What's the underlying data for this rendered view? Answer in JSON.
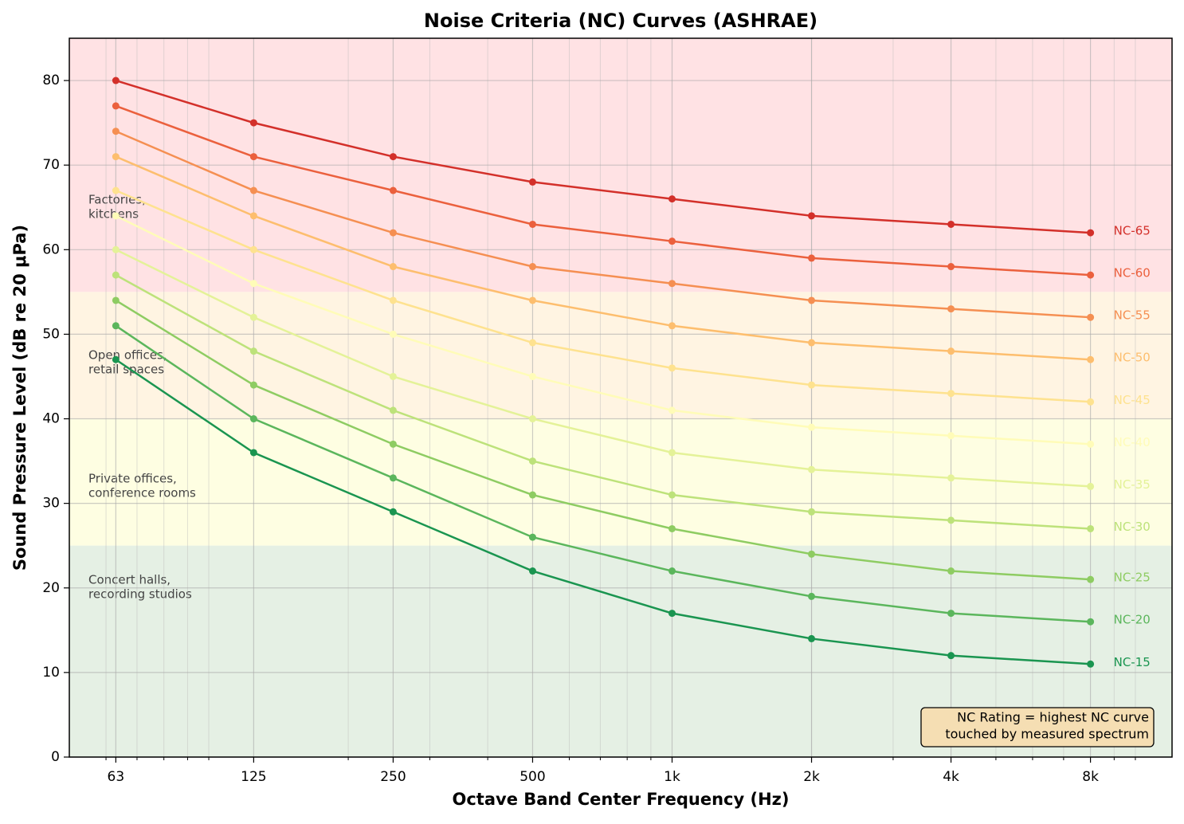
{
  "chart_data": {
    "type": "line",
    "title": "Noise Criteria (NC) Curves (ASHRAE)",
    "xlabel": "Octave Band Center Frequency (Hz)",
    "ylabel": "Sound Pressure Level (dB re 20 μPa)",
    "x": [
      63,
      125,
      250,
      500,
      1000,
      2000,
      4000,
      8000
    ],
    "xscale": "log",
    "xlim": [
      50,
      12000
    ],
    "xticks": [
      63,
      125,
      250,
      500,
      {
        "value": 1000,
        "label": "1k"
      },
      {
        "value": 2000,
        "label": "2k"
      },
      {
        "value": 4000,
        "label": "4k"
      },
      {
        "value": 8000,
        "label": "8k"
      }
    ],
    "xminorticks": [
      60,
      70,
      80,
      90,
      100,
      200,
      300,
      400,
      600,
      700,
      800,
      900,
      2000,
      3000,
      5000,
      6000,
      7000,
      9000,
      10000
    ],
    "ylim": [
      0,
      85
    ],
    "yticks": [
      0,
      10,
      20,
      30,
      40,
      50,
      60,
      70,
      80
    ],
    "grid": true,
    "series": [
      {
        "name": "NC-65",
        "color": "#d3302a",
        "values": [
          80,
          75,
          71,
          68,
          66,
          64,
          63,
          62
        ]
      },
      {
        "name": "NC-60",
        "color": "#eb603d",
        "values": [
          77,
          71,
          67,
          63,
          61,
          59,
          58,
          57
        ]
      },
      {
        "name": "NC-55",
        "color": "#f58f52",
        "values": [
          74,
          67,
          62,
          58,
          56,
          54,
          53,
          52
        ]
      },
      {
        "name": "NC-50",
        "color": "#fdbe6e",
        "values": [
          71,
          64,
          58,
          54,
          51,
          49,
          48,
          47
        ]
      },
      {
        "name": "NC-45",
        "color": "#fee28f",
        "values": [
          67,
          60,
          54,
          49,
          46,
          44,
          43,
          42
        ]
      },
      {
        "name": "NC-40",
        "color": "#fffcb8",
        "values": [
          64,
          56,
          50,
          45,
          41,
          39,
          38,
          37
        ]
      },
      {
        "name": "NC-35",
        "color": "#e4f298",
        "values": [
          60,
          52,
          45,
          40,
          36,
          34,
          33,
          32
        ]
      },
      {
        "name": "NC-30",
        "color": "#bde27a",
        "values": [
          57,
          48,
          41,
          35,
          31,
          29,
          28,
          27
        ]
      },
      {
        "name": "NC-25",
        "color": "#8ecc62",
        "values": [
          54,
          44,
          37,
          31,
          27,
          24,
          22,
          21
        ]
      },
      {
        "name": "NC-20",
        "color": "#5bb65c",
        "values": [
          51,
          40,
          33,
          26,
          22,
          19,
          17,
          16
        ]
      },
      {
        "name": "NC-15",
        "color": "#1a9550",
        "values": [
          47,
          36,
          29,
          22,
          17,
          14,
          12,
          11
        ]
      }
    ],
    "bands": [
      {
        "range": [
          55,
          85
        ],
        "color": "#ffe2e4",
        "label": [
          "Factories,",
          "kitchens"
        ]
      },
      {
        "range": [
          40,
          55
        ],
        "color": "#fff4e2",
        "label": [
          "Open offices,",
          "retail spaces"
        ]
      },
      {
        "range": [
          25,
          40
        ],
        "color": "#fefee2",
        "label": [
          "Private offices,",
          "conference rooms"
        ]
      },
      {
        "range": [
          0,
          25
        ],
        "color": "#e5f0e4",
        "label": [
          "Concert halls,",
          "recording studios"
        ]
      }
    ],
    "annotation": [
      "NC Rating = highest NC curve",
      "touched by measured spectrum"
    ]
  }
}
